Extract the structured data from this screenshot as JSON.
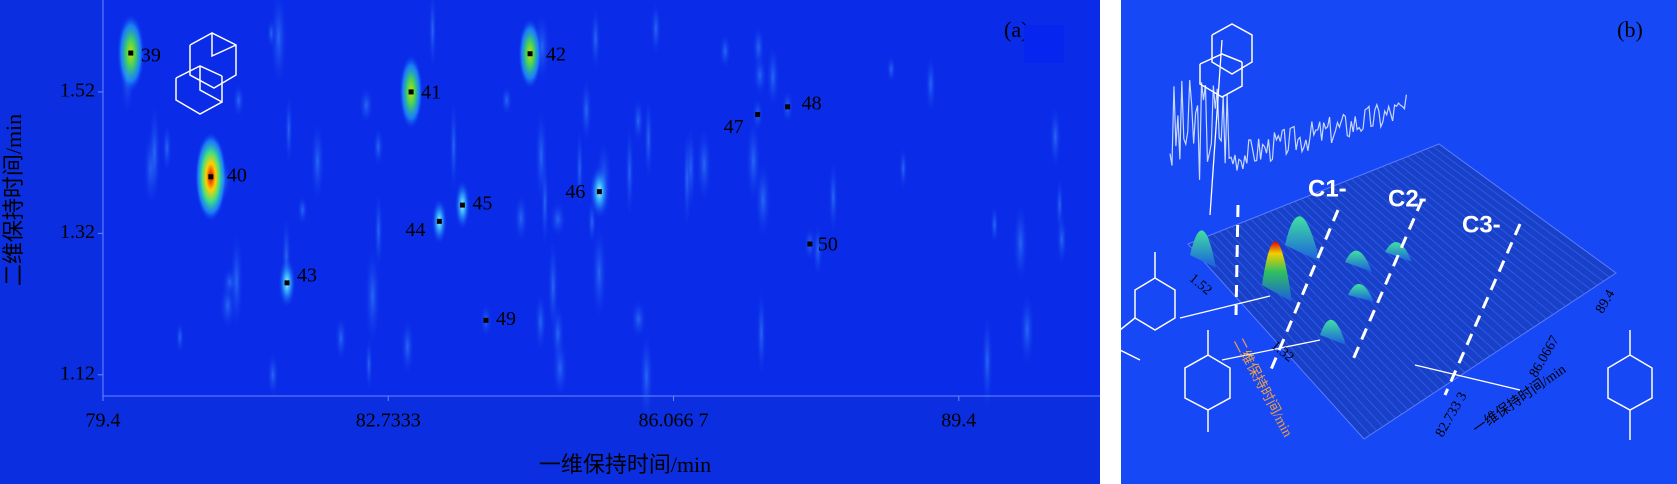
{
  "chart_data": [
    {
      "type": "scatter",
      "panel_label": "(a)",
      "x_label": "一维保持时间/min",
      "y_label": "二维保持时间/min",
      "labels": [
        "39",
        "40",
        "41",
        "42",
        "43",
        "44",
        "45",
        "46",
        "47",
        "48",
        "49",
        "50"
      ],
      "x": [
        79.725,
        80.66,
        83.0,
        84.39,
        81.55,
        83.33,
        83.6,
        85.2,
        87.05,
        87.4,
        83.875,
        87.66
      ],
      "values": [
        1.575,
        1.4,
        1.52,
        1.574,
        1.25,
        1.337,
        1.36,
        1.379,
        1.488,
        1.499,
        1.197,
        1.305
      ],
      "color": "#000000",
      "xlim": [
        79.4,
        91.05
      ],
      "xticks": [
        79.4,
        82.7333,
        {
          "value": 86.0667,
          "label": "86.066 7"
        },
        89.4
      ],
      "ylim": [
        1.09,
        1.65
      ],
      "yticks": [
        1.12,
        1.32,
        1.52
      ]
    },
    {
      "type": "surface",
      "panel_label": "(b)",
      "zones": [
        "C1-",
        "C2-",
        "C3-"
      ],
      "x_label": "一维保持时间/min",
      "y_label": "二维保持时间/min",
      "x_tick_labels": [
        "82.733 3",
        "86.0667",
        "89.4"
      ],
      "y_tick_labels": [
        "1.52",
        "1.32"
      ]
    }
  ]
}
